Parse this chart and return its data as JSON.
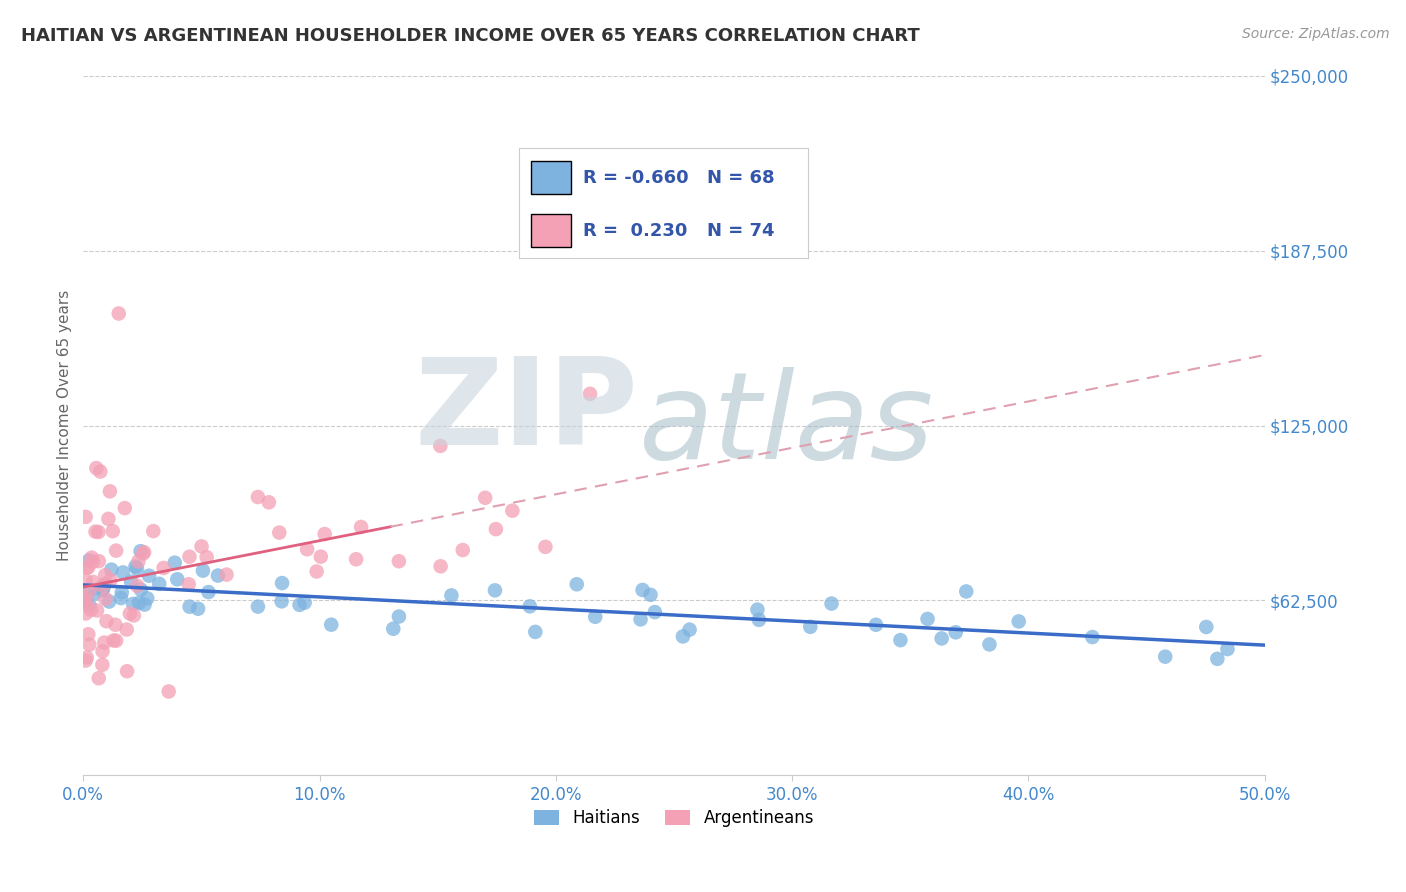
{
  "title": "HAITIAN VS ARGENTINEAN HOUSEHOLDER INCOME OVER 65 YEARS CORRELATION CHART",
  "source_text": "Source: ZipAtlas.com",
  "ylabel": "Householder Income Over 65 years",
  "xlim": [
    0.0,
    0.5
  ],
  "ylim": [
    0,
    250000
  ],
  "yticks": [
    0,
    62500,
    125000,
    187500,
    250000
  ],
  "ytick_labels": [
    "",
    "$62,500",
    "$125,000",
    "$187,500",
    "$250,000"
  ],
  "xtick_labels": [
    "0.0%",
    "10.0%",
    "20.0%",
    "30.0%",
    "40.0%",
    "50.0%"
  ],
  "xticks": [
    0.0,
    0.1,
    0.2,
    0.3,
    0.4,
    0.5
  ],
  "haitians_color": "#7EB3E0",
  "argentineans_color": "#F4A0B5",
  "haitians_trend_color": "#3A6CC8",
  "argentineans_trend_color": "#E06080",
  "argentineans_dashed_color": "#E0A0B0",
  "R_haitian": -0.66,
  "N_haitian": 68,
  "R_argentinean": 0.23,
  "N_argentinean": 74,
  "background_color": "#FFFFFF",
  "grid_color": "#CCCCCC",
  "title_color": "#333333",
  "axis_label_color": "#666666",
  "tick_label_color": "#4488CC",
  "watermark_zip_color": "#D0DCE8",
  "watermark_atlas_color": "#A8C0D0",
  "source_color": "#999999",
  "legend_R_color": "#3355AA",
  "legend_N_color": "#3355AA"
}
